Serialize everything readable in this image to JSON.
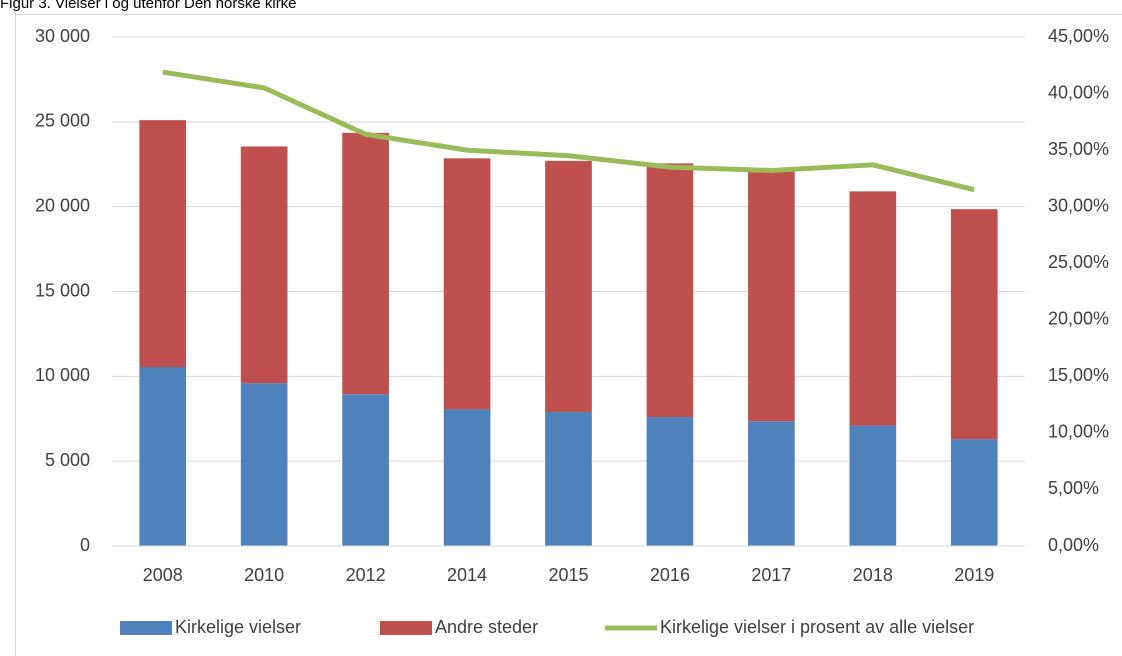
{
  "chart_data": {
    "type": "bar",
    "stacked": true,
    "title": "Figur 3. Vielser i og utenfor Den norske kirke",
    "categories": [
      "2008",
      "2010",
      "2012",
      "2014",
      "2015",
      "2016",
      "2017",
      "2018",
      "2019"
    ],
    "series": [
      {
        "name": "Kirkelige vielser",
        "color": "#4f81bd",
        "values": [
          10550,
          9600,
          8950,
          8050,
          7900,
          7600,
          7350,
          7100,
          6300
        ]
      },
      {
        "name": "Andre steder",
        "color": "#c0504d",
        "values": [
          14550,
          13950,
          15400,
          14800,
          14800,
          14950,
          14850,
          13800,
          13550
        ]
      },
      {
        "name": "Kirkelige vielser i prosent av alle vielser",
        "color": "#9bbb59",
        "type": "line",
        "axis": "y2",
        "values": [
          41.9,
          40.5,
          36.4,
          35.0,
          34.5,
          33.5,
          33.2,
          33.7,
          31.5
        ]
      }
    ],
    "ylim": [
      0,
      30000
    ],
    "yticks": [
      0,
      {
        "value": 5000,
        "label": "5 000"
      },
      {
        "value": 10000,
        "label": "10 000"
      },
      {
        "value": 15000,
        "label": "15 000"
      },
      {
        "value": 20000,
        "label": "20 000"
      },
      {
        "value": 25000,
        "label": "25 000"
      },
      {
        "value": 30000,
        "label": "30 000"
      }
    ],
    "y2lim": [
      0,
      45
    ],
    "y2ticks": [
      {
        "value": 0,
        "label": "0,00%"
      },
      {
        "value": 5,
        "label": "5,00%"
      },
      {
        "value": 10,
        "label": "10,00%"
      },
      {
        "value": 15,
        "label": "15,00%"
      },
      {
        "value": 20,
        "label": "20,00%"
      },
      {
        "value": 25,
        "label": "25,00%"
      },
      {
        "value": 30,
        "label": "30,00%"
      },
      {
        "value": 35,
        "label": "35,00%"
      },
      {
        "value": 40,
        "label": "40,00%"
      },
      {
        "value": 45,
        "label": "45,00%"
      }
    ],
    "grid": true,
    "legend": "bottom"
  }
}
